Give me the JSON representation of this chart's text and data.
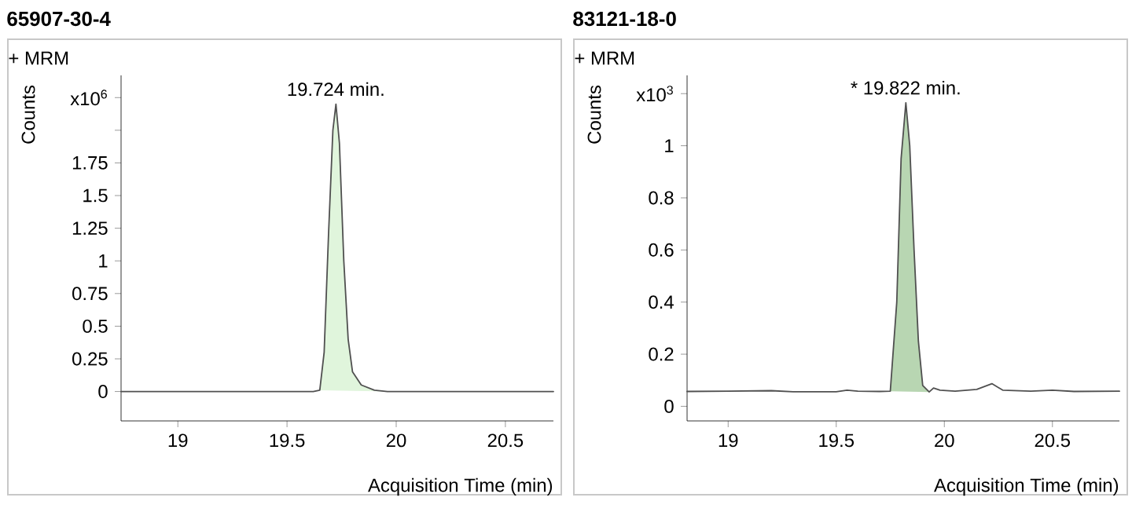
{
  "chart_data": [
    {
      "type": "line",
      "title": "65907-30-4",
      "subtitle": "+ MRM",
      "xlabel": "Acquisition Time (min)",
      "ylabel": "Counts",
      "annotations": [
        {
          "text": "19.724 min.",
          "x": 19.724,
          "y": 2.2
        }
      ],
      "xlim": [
        18.74,
        20.72
      ],
      "xticks": [
        19,
        19.5,
        20,
        20.5
      ],
      "ylim": [
        -0.225,
        2.42
      ],
      "yticks": [
        0,
        0.25,
        0.5,
        0.75,
        1,
        1.25,
        1.5,
        1.75,
        {
          "value": 2,
          "label": null
        },
        {
          "value": 2.25,
          "label": "x10$^{6}$"
        }
      ],
      "series": [
        {
          "type": "area",
          "color": "#e0f5dc",
          "x": [
            19.65,
            19.67,
            19.69,
            19.71,
            19.724,
            19.74,
            19.76,
            19.78,
            19.8,
            19.84,
            19.9,
            19.96
          ],
          "values": [
            0.01,
            0.3,
            1.2,
            2.0,
            2.2,
            1.9,
            1.0,
            0.4,
            0.15,
            0.05,
            0.01,
            0
          ]
        },
        {
          "color": "#505050",
          "x": [
            18.74,
            19.62,
            19.65,
            19.67,
            19.69,
            19.71,
            19.724,
            19.74,
            19.76,
            19.78,
            19.8,
            19.84,
            19.9,
            19.96,
            20.72
          ],
          "values": [
            0,
            0,
            0.01,
            0.3,
            1.2,
            2.0,
            2.2,
            1.9,
            1.0,
            0.4,
            0.15,
            0.05,
            0.01,
            0,
            0
          ]
        }
      ]
    },
    {
      "type": "line",
      "title": "83121-18-0",
      "subtitle": "+ MRM",
      "xlabel": "Acquisition Time (min)",
      "ylabel": "Counts",
      "annotations": [
        {
          "text": "* 19.822 min.",
          "x": 19.822,
          "y": 1.165
        }
      ],
      "xlim": [
        18.81,
        20.81
      ],
      "xticks": [
        19,
        19.5,
        20,
        20.5
      ],
      "ylim": [
        -0.056,
        1.27
      ],
      "yticks": [
        0,
        0.2,
        0.4,
        0.6,
        0.8,
        1,
        {
          "value": 1.2,
          "label": "x10$^{3}$"
        }
      ],
      "series": [
        {
          "type": "area",
          "color": "#b8d6b2",
          "x": [
            19.75,
            19.78,
            19.8,
            19.822,
            19.84,
            19.86,
            19.88,
            19.9,
            19.93
          ],
          "values": [
            0.058,
            0.4,
            0.95,
            1.165,
            1.0,
            0.6,
            0.25,
            0.08,
            0.055
          ]
        },
        {
          "color": "#505050",
          "x": [
            18.81,
            19.0,
            19.2,
            19.3,
            19.5,
            19.55,
            19.6,
            19.7,
            19.75,
            19.78,
            19.8,
            19.822,
            19.84,
            19.86,
            19.88,
            19.9,
            19.93,
            19.95,
            19.98,
            20.05,
            20.15,
            20.22,
            20.27,
            20.4,
            20.5,
            20.6,
            20.81
          ],
          "values": [
            0.057,
            0.058,
            0.06,
            0.056,
            0.056,
            0.062,
            0.058,
            0.057,
            0.058,
            0.4,
            0.95,
            1.165,
            1.0,
            0.6,
            0.25,
            0.08,
            0.055,
            0.07,
            0.062,
            0.058,
            0.065,
            0.087,
            0.062,
            0.058,
            0.062,
            0.057,
            0.058
          ]
        }
      ]
    }
  ]
}
